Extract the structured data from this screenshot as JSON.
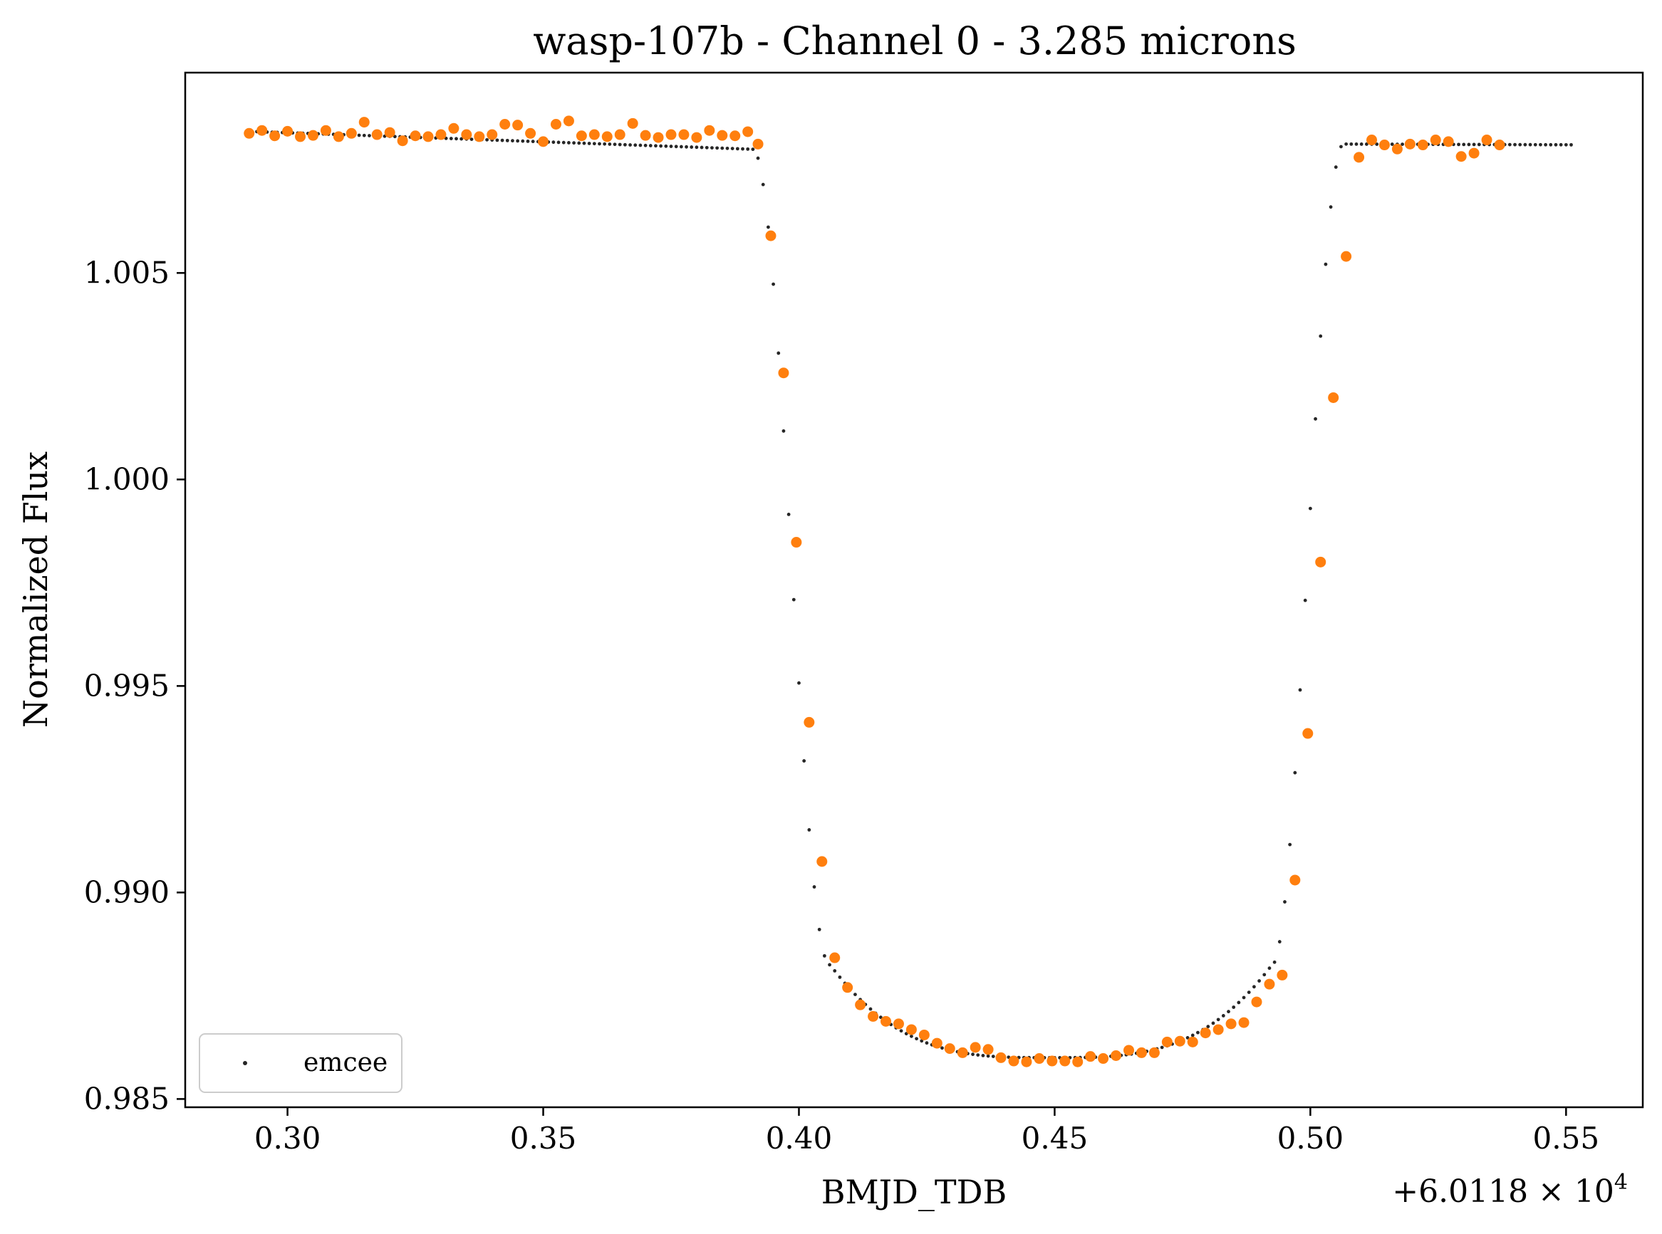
{
  "chart_data": {
    "type": "scatter",
    "title": "wasp-107b - Channel 0 - 3.285 microns",
    "xlabel": "BMJD_TDB",
    "ylabel": "Normalized Flux",
    "x_offset_label": "+6.0118 × 10",
    "x_offset_exponent": "4",
    "xlim": [
      0.28,
      0.565
    ],
    "ylim": [
      0.9848,
      1.00985
    ],
    "xticks": [
      0.3,
      0.35,
      0.4,
      0.45,
      0.5,
      0.55
    ],
    "xtick_labels": [
      "0.30",
      "0.35",
      "0.40",
      "0.45",
      "0.50",
      "0.55"
    ],
    "yticks": [
      0.985,
      0.99,
      0.995,
      1.0,
      1.005
    ],
    "ytick_labels": [
      "0.985",
      "0.990",
      "0.995",
      "1.000",
      "1.005"
    ],
    "grid": false,
    "legend": {
      "entries": [
        "emcee"
      ],
      "position": "lower-left"
    },
    "colors": {
      "data": "#ff7f0e",
      "model": "#262626",
      "axes": "#000000"
    },
    "model": {
      "name": "emcee",
      "style": "dotted line",
      "x_start": 0.292,
      "x_end": 0.551,
      "x_step": 0.001,
      "baseline_left": 1.00843,
      "baseline_slope": -4.4e-06,
      "ingress": [
        0.391,
        0.406
      ],
      "egress": [
        0.4925,
        0.5065
      ],
      "baseline_right": 1.00812,
      "transit_bottom": 0.986,
      "transit_edge": 0.98825,
      "transit_center": 0.4493,
      "transit_half_width": 0.0432
    },
    "series": [
      {
        "type": "scatter",
        "color": "#ff7f0e",
        "points": [
          [
            0.2925,
            1.00838
          ],
          [
            0.295,
            1.00845
          ],
          [
            0.2975,
            1.00832
          ],
          [
            0.3,
            1.00843
          ],
          [
            0.3025,
            1.0083
          ],
          [
            0.305,
            1.00833
          ],
          [
            0.3075,
            1.00845
          ],
          [
            0.31,
            1.0083
          ],
          [
            0.3125,
            1.00838
          ],
          [
            0.315,
            1.00865
          ],
          [
            0.3175,
            1.00835
          ],
          [
            0.32,
            1.0084
          ],
          [
            0.3225,
            1.0082
          ],
          [
            0.325,
            1.00832
          ],
          [
            0.3275,
            1.0083
          ],
          [
            0.33,
            1.00835
          ],
          [
            0.3325,
            1.0085
          ],
          [
            0.335,
            1.00835
          ],
          [
            0.3375,
            1.0083
          ],
          [
            0.34,
            1.00835
          ],
          [
            0.3425,
            1.0086
          ],
          [
            0.345,
            1.00858
          ],
          [
            0.3475,
            1.00838
          ],
          [
            0.35,
            1.00818
          ],
          [
            0.3525,
            1.0086
          ],
          [
            0.355,
            1.00868
          ],
          [
            0.3575,
            1.00832
          ],
          [
            0.36,
            1.00835
          ],
          [
            0.3625,
            1.0083
          ],
          [
            0.365,
            1.00835
          ],
          [
            0.3675,
            1.00862
          ],
          [
            0.37,
            1.00833
          ],
          [
            0.3725,
            1.00828
          ],
          [
            0.375,
            1.00835
          ],
          [
            0.3775,
            1.00835
          ],
          [
            0.38,
            1.00828
          ],
          [
            0.3825,
            1.00845
          ],
          [
            0.385,
            1.00833
          ],
          [
            0.3875,
            1.00832
          ],
          [
            0.39,
            1.00842
          ],
          [
            0.392,
            1.00812
          ],
          [
            0.3945,
            1.0059
          ],
          [
            0.397,
            1.00258
          ],
          [
            0.3995,
            0.99848
          ],
          [
            0.402,
            0.99412
          ],
          [
            0.4045,
            0.99075
          ],
          [
            0.407,
            0.98842
          ],
          [
            0.4095,
            0.9877
          ],
          [
            0.412,
            0.98728
          ],
          [
            0.4145,
            0.987
          ],
          [
            0.417,
            0.98688
          ],
          [
            0.4195,
            0.98682
          ],
          [
            0.422,
            0.98668
          ],
          [
            0.4245,
            0.98655
          ],
          [
            0.427,
            0.98635
          ],
          [
            0.4295,
            0.98622
          ],
          [
            0.432,
            0.98612
          ],
          [
            0.4345,
            0.98625
          ],
          [
            0.437,
            0.9862
          ],
          [
            0.4395,
            0.986
          ],
          [
            0.442,
            0.98592
          ],
          [
            0.4445,
            0.9859
          ],
          [
            0.447,
            0.98598
          ],
          [
            0.4495,
            0.98592
          ],
          [
            0.452,
            0.98592
          ],
          [
            0.4545,
            0.9859
          ],
          [
            0.457,
            0.98603
          ],
          [
            0.4595,
            0.98598
          ],
          [
            0.462,
            0.98605
          ],
          [
            0.4645,
            0.98618
          ],
          [
            0.467,
            0.98612
          ],
          [
            0.4695,
            0.98612
          ],
          [
            0.472,
            0.98638
          ],
          [
            0.4745,
            0.9864
          ],
          [
            0.477,
            0.98638
          ],
          [
            0.4795,
            0.9866
          ],
          [
            0.482,
            0.98668
          ],
          [
            0.4845,
            0.98682
          ],
          [
            0.487,
            0.98685
          ],
          [
            0.4895,
            0.98735
          ],
          [
            0.492,
            0.98778
          ],
          [
            0.4945,
            0.988
          ],
          [
            0.497,
            0.9903
          ],
          [
            0.4995,
            0.99385
          ],
          [
            0.502,
            0.998
          ],
          [
            0.5045,
            1.00198
          ],
          [
            0.507,
            1.0054
          ],
          [
            0.5095,
            1.0078
          ],
          [
            0.512,
            1.00822
          ],
          [
            0.5145,
            1.0081
          ],
          [
            0.517,
            1.008
          ],
          [
            0.5195,
            1.00812
          ],
          [
            0.522,
            1.0081
          ],
          [
            0.5245,
            1.00822
          ],
          [
            0.527,
            1.00818
          ],
          [
            0.5295,
            1.00782
          ],
          [
            0.532,
            1.0079
          ],
          [
            0.5345,
            1.00822
          ],
          [
            0.537,
            1.0081
          ]
        ]
      }
    ]
  }
}
